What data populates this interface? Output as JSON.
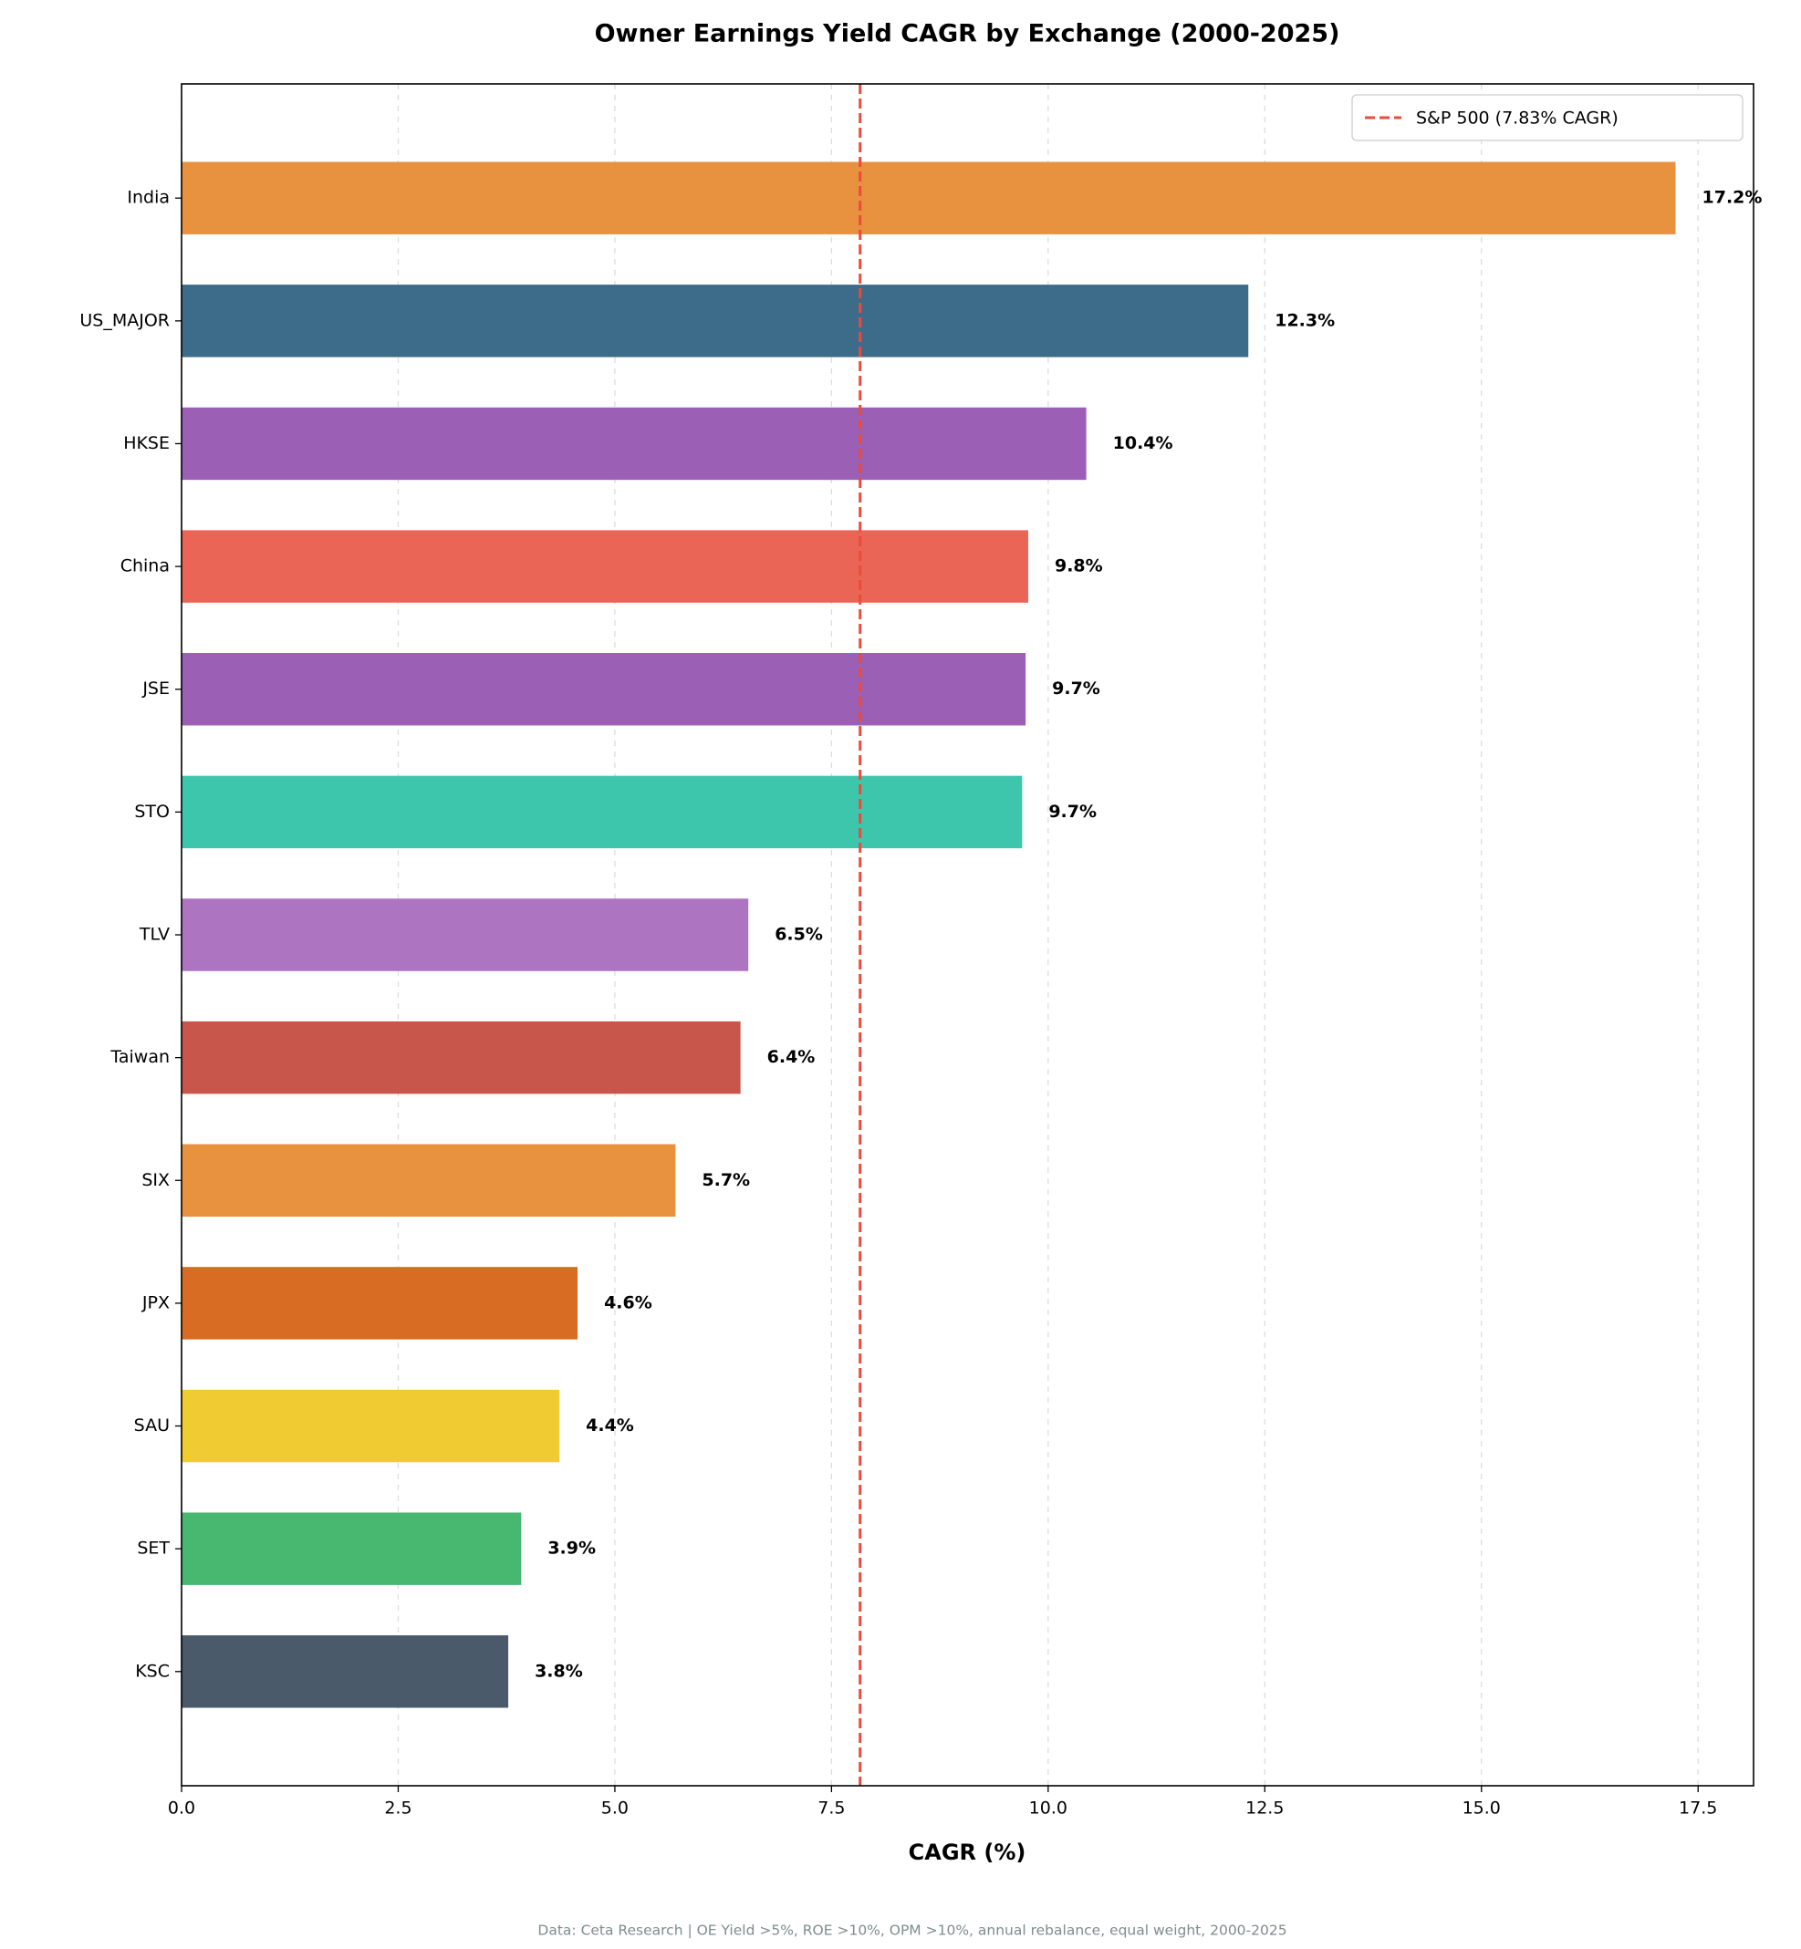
{
  "chart_data": {
    "type": "barh",
    "title": "Owner Earnings Yield CAGR by Exchange (2000-2025)",
    "xlabel": "CAGR (%)",
    "note": "Data: Ceta Research | OE Yield >5%, ROE >10%, OPM >10%, annual rebalance, equal weight, 2000-2025",
    "categories": [
      "India",
      "US_MAJOR",
      "HKSE",
      "China",
      "JSE",
      "STO",
      "TLV",
      "Taiwan",
      "SIX",
      "JPX",
      "SAU",
      "SET",
      "KSC"
    ],
    "values": [
      17.24,
      12.31,
      10.44,
      9.77,
      9.74,
      9.7,
      6.54,
      6.45,
      5.7,
      4.57,
      4.36,
      3.92,
      3.77
    ],
    "value_labels": [
      "17.2%",
      "12.3%",
      "10.4%",
      "9.8%",
      "9.7%",
      "9.7%",
      "6.5%",
      "6.4%",
      "5.7%",
      "4.6%",
      "4.4%",
      "3.9%",
      "3.8%"
    ],
    "colors": [
      "#e8913f",
      "#3d6b8a",
      "#9c5fb6",
      "#eb6556",
      "#9c5fb6",
      "#3dc6ab",
      "#ac74c1",
      "#c9564a",
      "#e8913f",
      "#d86c23",
      "#f1cb32",
      "#48b870",
      "#4a5a6a"
    ],
    "xlim": [
      0,
      18.14
    ],
    "xticks": [
      {
        "value": 0,
        "label": "0.0"
      },
      2.5,
      {
        "value": 5,
        "label": "5.0"
      },
      7.5,
      {
        "value": 10,
        "label": "10.0"
      },
      12.5,
      {
        "value": 15,
        "label": "15.0"
      },
      17.5
    ],
    "grid": true,
    "reference_line": {
      "value": 7.83,
      "label": "S&P 500 (7.83% CAGR)",
      "color": "#e74c3c"
    },
    "legend_position": "upper right"
  }
}
